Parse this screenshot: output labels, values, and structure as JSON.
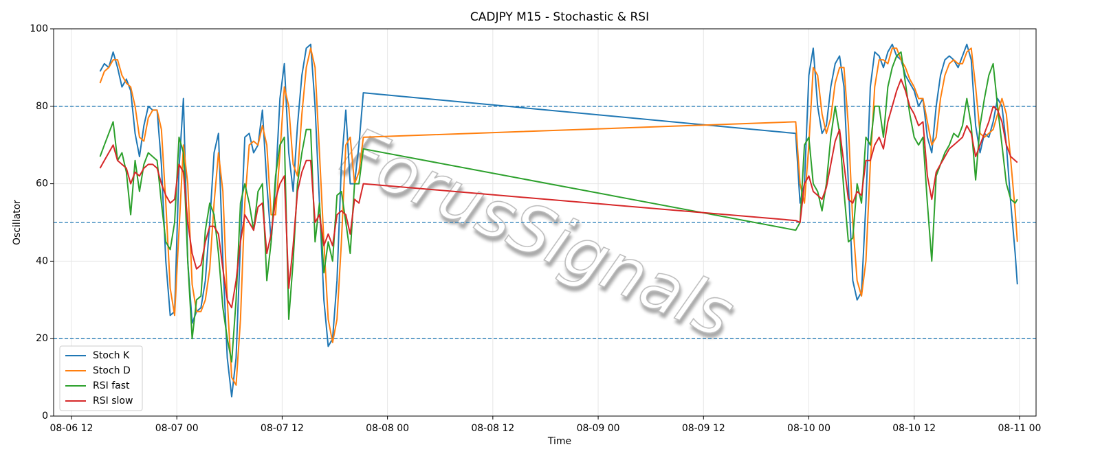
{
  "chart_data": {
    "type": "line",
    "title": "CADJPY M15 - Stochastic & RSI",
    "xlabel": "Time",
    "ylabel": "Oscillator",
    "watermark": "ForusSignals",
    "x": [
      "08-06 15:15",
      "08-06 15:45",
      "08-06 16:15",
      "08-06 16:45",
      "08-06 17:15",
      "08-06 17:45",
      "08-06 18:15",
      "08-06 18:45",
      "08-06 19:15",
      "08-06 19:45",
      "08-06 20:15",
      "08-06 20:45",
      "08-06 21:15",
      "08-06 21:45",
      "08-06 22:15",
      "08-06 22:45",
      "08-06 23:15",
      "08-06 23:45",
      "08-07 00:15",
      "08-07 00:45",
      "08-07 01:15",
      "08-07 01:45",
      "08-07 02:15",
      "08-07 02:45",
      "08-07 03:15",
      "08-07 03:45",
      "08-07 04:15",
      "08-07 04:45",
      "08-07 05:15",
      "08-07 05:45",
      "08-07 06:15",
      "08-07 06:45",
      "08-07 07:15",
      "08-07 07:45",
      "08-07 08:15",
      "08-07 08:45",
      "08-07 09:15",
      "08-07 09:45",
      "08-07 10:15",
      "08-07 10:45",
      "08-07 11:15",
      "08-07 11:45",
      "08-07 12:15",
      "08-07 12:45",
      "08-07 13:15",
      "08-07 13:45",
      "08-07 14:15",
      "08-07 14:45",
      "08-07 15:15",
      "08-07 15:45",
      "08-07 16:15",
      "08-07 16:45",
      "08-07 17:15",
      "08-07 17:45",
      "08-07 18:15",
      "08-07 18:45",
      "08-07 19:15",
      "08-07 19:45",
      "08-07 20:15",
      "08-07 20:45",
      "08-07 21:15",
      "08-09 22:30",
      "08-09 23:00",
      "08-09 23:30",
      "08-10 00:00",
      "08-10 00:30",
      "08-10 01:00",
      "08-10 01:30",
      "08-10 02:00",
      "08-10 02:30",
      "08-10 03:00",
      "08-10 03:30",
      "08-10 04:00",
      "08-10 04:30",
      "08-10 05:00",
      "08-10 05:30",
      "08-10 06:00",
      "08-10 06:30",
      "08-10 07:00",
      "08-10 07:30",
      "08-10 08:00",
      "08-10 08:30",
      "08-10 09:00",
      "08-10 09:30",
      "08-10 10:00",
      "08-10 10:30",
      "08-10 11:00",
      "08-10 11:30",
      "08-10 12:00",
      "08-10 12:30",
      "08-10 13:00",
      "08-10 13:30",
      "08-10 14:00",
      "08-10 14:30",
      "08-10 15:00",
      "08-10 15:30",
      "08-10 16:00",
      "08-10 16:30",
      "08-10 17:00",
      "08-10 17:30",
      "08-10 18:00",
      "08-10 18:30",
      "08-10 19:00",
      "08-10 19:30",
      "08-10 20:00",
      "08-10 20:30",
      "08-10 21:00",
      "08-10 21:30",
      "08-10 22:00",
      "08-10 22:30",
      "08-10 23:00",
      "08-10 23:30",
      "08-10 23:45"
    ],
    "series": [
      {
        "name": "Stoch K",
        "color": "#1f77b4",
        "values": [
          89,
          91,
          90,
          94,
          90,
          85,
          87,
          84,
          73,
          67,
          75,
          80,
          79,
          79,
          65,
          40,
          26,
          27,
          64,
          82,
          40,
          24,
          27,
          28,
          35,
          50,
          68,
          73,
          40,
          15,
          5,
          15,
          45,
          72,
          73,
          68,
          70,
          79,
          60,
          45,
          60,
          82,
          91,
          68,
          58,
          75,
          88,
          95,
          96,
          80,
          55,
          30,
          18,
          20,
          35,
          65,
          79,
          60,
          60,
          70,
          83.5,
          73,
          55,
          60,
          88,
          95,
          80,
          73,
          75,
          85,
          91,
          93,
          85,
          60,
          35,
          30,
          32,
          55,
          85,
          94,
          93,
          90,
          94,
          96,
          93,
          92,
          88,
          86,
          84,
          80,
          82,
          72,
          68,
          80,
          88,
          92,
          93,
          92,
          90,
          93,
          96,
          92,
          75,
          68,
          73,
          72,
          76,
          82,
          80,
          70,
          55,
          42,
          34
        ]
      },
      {
        "name": "Stoch D",
        "color": "#ff7f0e",
        "values": [
          86,
          89,
          90,
          92,
          92,
          88,
          86,
          85,
          80,
          72,
          71,
          77,
          79,
          79,
          74,
          55,
          33,
          26,
          48,
          70,
          60,
          34,
          27,
          27,
          30,
          38,
          55,
          68,
          58,
          30,
          10,
          8,
          25,
          55,
          70,
          71,
          70,
          75,
          70,
          52,
          52,
          68,
          85,
          80,
          65,
          62,
          78,
          90,
          95,
          90,
          68,
          45,
          25,
          19,
          25,
          45,
          70,
          72,
          60,
          63,
          72,
          76,
          60,
          55,
          70,
          90,
          88,
          78,
          73,
          77,
          86,
          90,
          90,
          75,
          50,
          35,
          31,
          40,
          65,
          85,
          92,
          92,
          91,
          95,
          95,
          92,
          90,
          87,
          85,
          82,
          82,
          76,
          70,
          72,
          82,
          88,
          91,
          92,
          91,
          91,
          94,
          95,
          85,
          73,
          72,
          73,
          74,
          78,
          82,
          78,
          66,
          53,
          45
        ]
      },
      {
        "name": "RSI fast",
        "color": "#2ca02c",
        "values": [
          67,
          70,
          73,
          76,
          66,
          68,
          63,
          52,
          66,
          58,
          65,
          68,
          67,
          66,
          55,
          45,
          43,
          50,
          72,
          68,
          40,
          20,
          30,
          31,
          48,
          55,
          52,
          42,
          28,
          20,
          14,
          30,
          55,
          60,
          55,
          48,
          58,
          60,
          35,
          45,
          62,
          70,
          72,
          25,
          40,
          60,
          68,
          74,
          74,
          45,
          55,
          37,
          45,
          40,
          57,
          58,
          50,
          42,
          60,
          60,
          69,
          48,
          50,
          70,
          72,
          60,
          58,
          53,
          60,
          72,
          80,
          73,
          58,
          45,
          46,
          60,
          55,
          72,
          70,
          80,
          80,
          72,
          85,
          90,
          93,
          94,
          86,
          78,
          72,
          70,
          72,
          55,
          40,
          62,
          65,
          68,
          70,
          73,
          72,
          75,
          82,
          75,
          61,
          75,
          82,
          88,
          91,
          80,
          70,
          60,
          56,
          55,
          56
        ]
      },
      {
        "name": "RSI slow",
        "color": "#d62728",
        "values": [
          64,
          66,
          68,
          70,
          66,
          65,
          64,
          60,
          63,
          62,
          64,
          65,
          65,
          64,
          60,
          57,
          55,
          56,
          65,
          63,
          50,
          42,
          38,
          39,
          45,
          49,
          49,
          47,
          38,
          30,
          28,
          35,
          45,
          52,
          50,
          48,
          54,
          55,
          42,
          47,
          56,
          60,
          62,
          33,
          44,
          58,
          63,
          66,
          66,
          50,
          52,
          44,
          47,
          44,
          52,
          53,
          52,
          47,
          56,
          55,
          60,
          50.5,
          50,
          60,
          62,
          58,
          57,
          56,
          59,
          65,
          71,
          74,
          65,
          56,
          55,
          58,
          57,
          66,
          66,
          70,
          72,
          69,
          76,
          80,
          84,
          87,
          84,
          80,
          78,
          75,
          76,
          62,
          56,
          63,
          65,
          67,
          69,
          70,
          71,
          72,
          75,
          73,
          67,
          70,
          73,
          76,
          80,
          79,
          76,
          70,
          67,
          66,
          65.5
        ]
      }
    ],
    "hlines": [
      20,
      50,
      80
    ],
    "hline_color": "#1f77b4",
    "xlim": [
      "08-06 09:58",
      "08-11 01:53"
    ],
    "xticks": [
      "08-06 12",
      "08-07 00",
      "08-07 12",
      "08-08 00",
      "08-08 12",
      "08-09 00",
      "08-09 12",
      "08-10 00",
      "08-10 12",
      "08-11 00"
    ],
    "ylim": [
      0,
      100
    ],
    "yticks": [
      0,
      20,
      40,
      60,
      80,
      100
    ],
    "grid": true,
    "legend": "lower left"
  }
}
